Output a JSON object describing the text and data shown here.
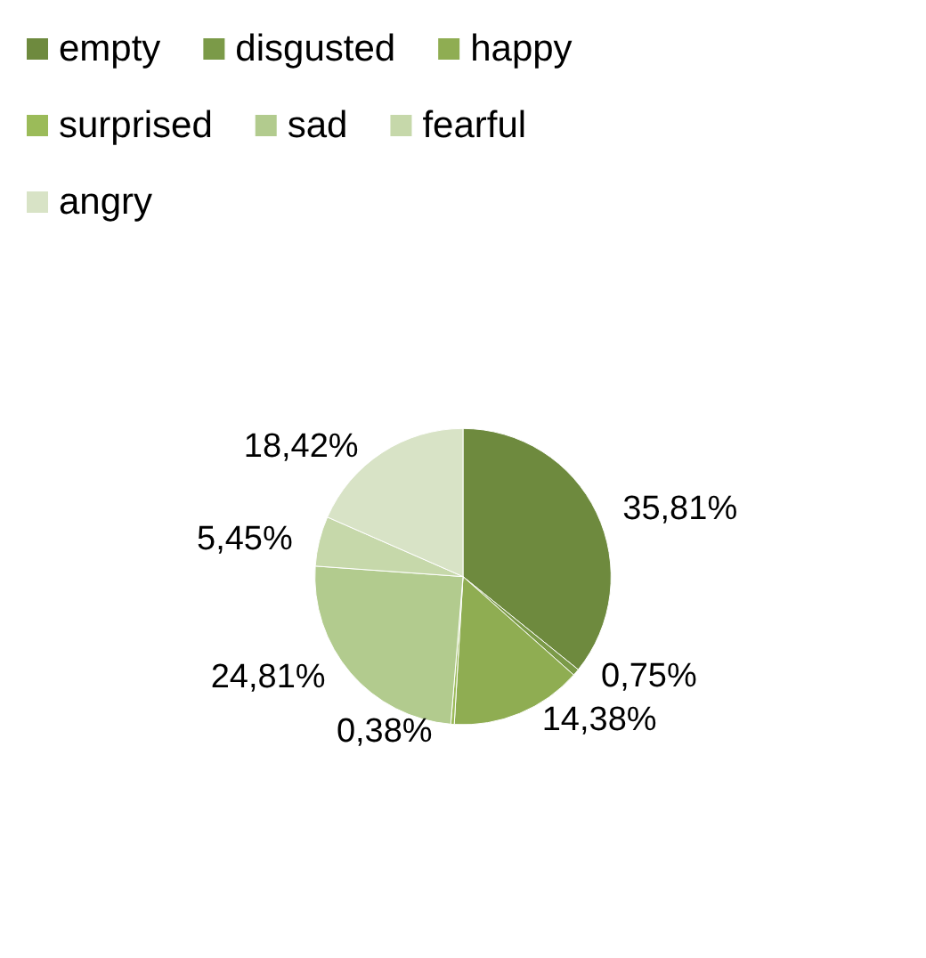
{
  "chart_data": {
    "type": "pie",
    "categories": [
      "empty",
      "disgusted",
      "happy",
      "surprised",
      "sad",
      "fearful",
      "angry"
    ],
    "values": [
      35.81,
      0.75,
      14.38,
      0.38,
      24.81,
      5.45,
      18.42
    ],
    "value_labels": [
      "35,81%",
      "0,75%",
      "14,38%",
      "0,38%",
      "24,81%",
      "5,45%",
      "18,42%"
    ],
    "colors": [
      "#6e8a3e",
      "#7b9a48",
      "#8fad52",
      "#9bbb59",
      "#b2cb8e",
      "#c6d8aa",
      "#d8e3c6"
    ],
    "legend": "top left"
  }
}
